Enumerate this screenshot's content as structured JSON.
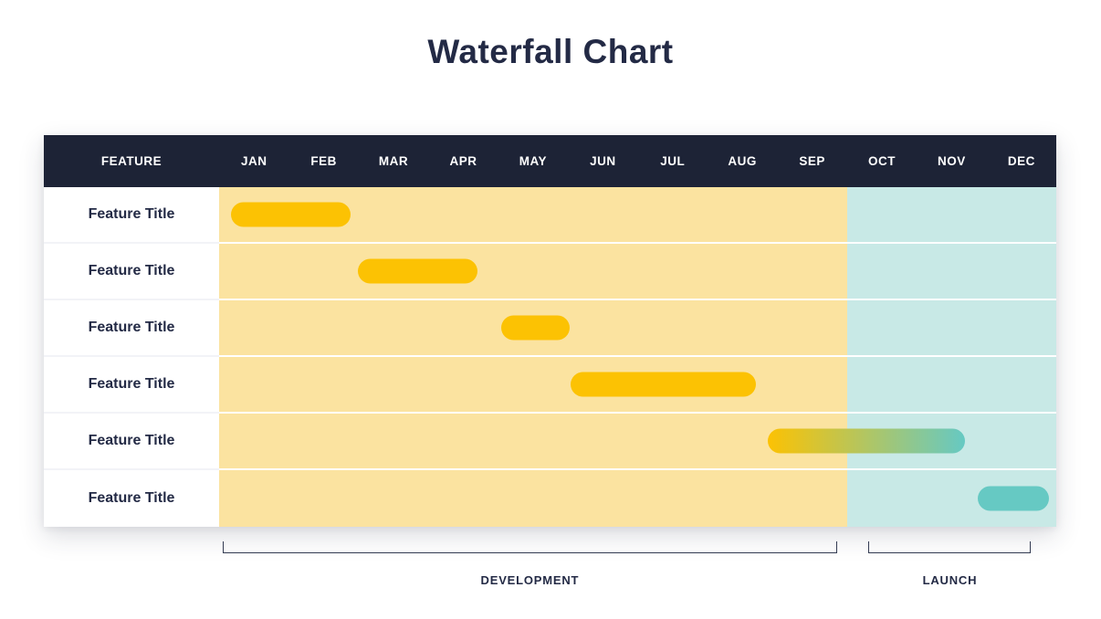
{
  "title": "Waterfall Chart",
  "colors": {
    "header_bg": "#1D2336",
    "ink": "#232A45",
    "development_bg": "#FBE3A0",
    "launch_bg": "#C8E9E6",
    "bar_yellow": "#FCC203",
    "bar_teal": "#66C9C3",
    "bracket_line": "#333B52"
  },
  "header": {
    "feature_label": "FEATURE",
    "months": [
      "JAN",
      "FEB",
      "MAR",
      "APR",
      "MAY",
      "JUN",
      "JUL",
      "AUG",
      "SEP",
      "OCT",
      "NOV",
      "DEC"
    ]
  },
  "rows": [
    {
      "label": "Feature Title"
    },
    {
      "label": "Feature Title"
    },
    {
      "label": "Feature Title"
    },
    {
      "label": "Feature Title"
    },
    {
      "label": "Feature Title"
    },
    {
      "label": "Feature Title"
    }
  ],
  "phases": {
    "split_month": 9,
    "items": [
      {
        "label": "DEVELOPMENT",
        "start_month": 0.05,
        "end_month": 8.86
      },
      {
        "label": "LAUNCH",
        "start_month": 9.31,
        "end_month": 11.64
      }
    ]
  },
  "chart_data": {
    "type": "bar",
    "subtype": "gantt-waterfall",
    "title": "Waterfall Chart",
    "xlabel": "",
    "ylabel": "",
    "x_ticks": [
      "JAN",
      "FEB",
      "MAR",
      "APR",
      "MAY",
      "JUN",
      "JUL",
      "AUG",
      "SEP",
      "OCT",
      "NOV",
      "DEC"
    ],
    "x_range_months": [
      0,
      12
    ],
    "categories": [
      "Feature Title",
      "Feature Title",
      "Feature Title",
      "Feature Title",
      "Feature Title",
      "Feature Title"
    ],
    "grid": "white row separators, no vertical gridlines",
    "legend_position": "none",
    "series": [
      {
        "name": "Feature Title",
        "start": 0.17,
        "end": 1.88,
        "style": "yellow",
        "color": "#FCC203"
      },
      {
        "name": "Feature Title",
        "start": 1.99,
        "end": 3.7,
        "style": "yellow",
        "color": "#FCC203"
      },
      {
        "name": "Feature Title",
        "start": 4.05,
        "end": 5.02,
        "style": "yellow",
        "color": "#FCC203"
      },
      {
        "name": "Feature Title",
        "start": 5.04,
        "end": 7.69,
        "style": "yellow",
        "color": "#FCC203"
      },
      {
        "name": "Feature Title",
        "start": 7.87,
        "end": 10.69,
        "style": "gradient",
        "color": "#FCC203 to #66C9C3"
      },
      {
        "name": "Feature Title",
        "start": 10.88,
        "end": 11.9,
        "style": "teal",
        "color": "#66C9C3"
      }
    ],
    "phase_bands": [
      {
        "label": "DEVELOPMENT",
        "start": 0,
        "end": 9,
        "background": "#FBE3A0"
      },
      {
        "label": "LAUNCH",
        "start": 9,
        "end": 12,
        "background": "#C8E9E6"
      }
    ]
  }
}
